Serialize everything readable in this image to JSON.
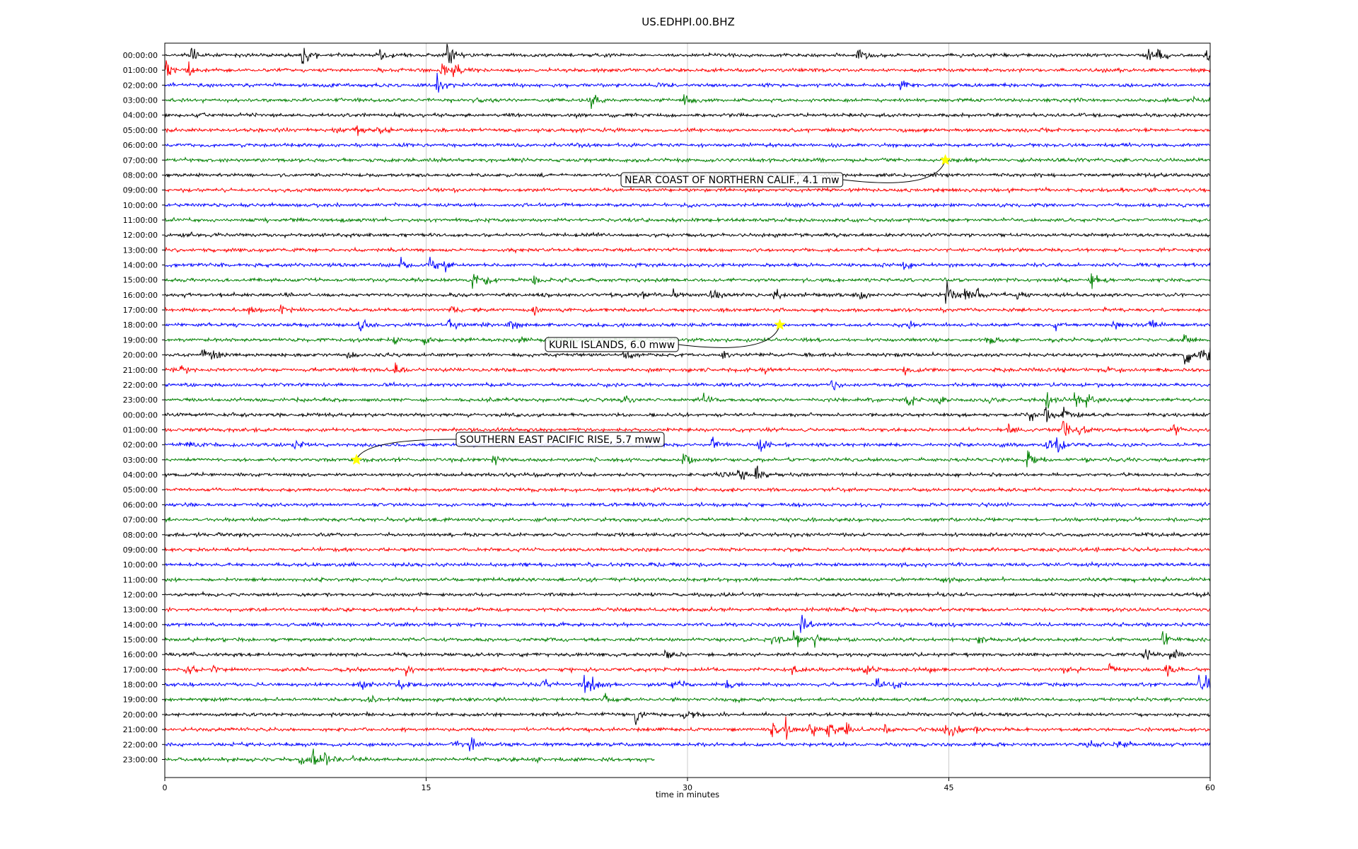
{
  "chart_data": {
    "type": "line",
    "title": "US.EDHPI.00.BHZ",
    "xlabel": "time in minutes",
    "ylabel": "",
    "xlim": [
      0,
      60
    ],
    "xticks": [
      "0",
      "15",
      "30",
      "45",
      "60"
    ],
    "xtick_values": [
      0,
      15,
      30,
      45,
      60
    ],
    "grid": "vertical at 15, 30, 45",
    "color_cycle": [
      "#000000",
      "#ff0000",
      "#0000ff",
      "#008000"
    ],
    "rows": [
      {
        "label": "00:00:00",
        "events": [
          [
            1.6,
            1.2
          ],
          [
            7.9,
            2.0
          ],
          [
            12.4,
            0.9
          ],
          [
            16.3,
            1.5
          ],
          [
            39.8,
            1.3
          ],
          [
            56.5,
            1.2
          ],
          [
            57.0,
            1.6
          ],
          [
            59.9,
            1.1
          ]
        ]
      },
      {
        "label": "01:00:00",
        "events": [
          [
            0.1,
            1.3
          ],
          [
            1.3,
            1.2
          ],
          [
            15.9,
            1.6
          ],
          [
            16.6,
            1.4
          ]
        ]
      },
      {
        "label": "02:00:00",
        "events": [
          [
            15.7,
            1.5
          ],
          [
            42.3,
            1.0
          ]
        ]
      },
      {
        "label": "03:00:00",
        "events": [
          [
            24.5,
            1.1
          ],
          [
            29.9,
            0.8
          ],
          [
            59.0,
            0.6
          ]
        ]
      },
      {
        "label": "04:00:00",
        "events": []
      },
      {
        "label": "05:00:00",
        "events": [
          [
            9.6,
            0.6
          ],
          [
            11.0,
            1.3
          ],
          [
            12.1,
            1.0
          ]
        ]
      },
      {
        "label": "06:00:00",
        "events": []
      },
      {
        "label": "07:00:00",
        "events": []
      },
      {
        "label": "08:00:00",
        "events": []
      },
      {
        "label": "09:00:00",
        "events": []
      },
      {
        "label": "10:00:00",
        "events": []
      },
      {
        "label": "11:00:00",
        "events": []
      },
      {
        "label": "12:00:00",
        "events": []
      },
      {
        "label": "13:00:00",
        "events": []
      },
      {
        "label": "14:00:00",
        "events": [
          [
            13.5,
            0.9
          ],
          [
            15.3,
            1.2
          ],
          [
            16.1,
            0.9
          ],
          [
            42.5,
            0.8
          ]
        ]
      },
      {
        "label": "15:00:00",
        "events": [
          [
            17.7,
            1.0
          ],
          [
            18.5,
            0.9
          ],
          [
            21.2,
            0.8
          ],
          [
            53.2,
            1.4
          ]
        ]
      },
      {
        "label": "16:00:00",
        "events": [
          [
            21.3,
            0.7
          ],
          [
            29.3,
            1.0
          ],
          [
            31.4,
            0.8
          ],
          [
            40.0,
            0.9
          ],
          [
            44.9,
            1.8
          ],
          [
            46.0,
            1.0
          ],
          [
            46.7,
            0.8
          ],
          [
            27.5,
            0.7
          ],
          [
            35.0,
            0.7
          ],
          [
            49.0,
            0.6
          ]
        ]
      },
      {
        "label": "17:00:00",
        "events": [
          [
            4.9,
            0.8
          ],
          [
            6.7,
            0.9
          ],
          [
            16.4,
            0.7
          ],
          [
            21.2,
            0.8
          ]
        ]
      },
      {
        "label": "18:00:00",
        "events": [
          [
            11.2,
            0.9
          ],
          [
            16.3,
            0.8
          ],
          [
            19.8,
            0.8
          ],
          [
            42.8,
            0.9
          ],
          [
            51.1,
            0.7
          ],
          [
            54.5,
            0.8
          ],
          [
            56.6,
            0.9
          ]
        ]
      },
      {
        "label": "19:00:00",
        "events": [
          [
            13.2,
            0.7
          ],
          [
            14.9,
            0.8
          ],
          [
            20.3,
            0.6
          ],
          [
            47.2,
            0.7
          ],
          [
            58.6,
            0.8
          ]
        ]
      },
      {
        "label": "20:00:00",
        "events": [
          [
            2.2,
            1.2
          ],
          [
            2.6,
            1.0
          ],
          [
            10.5,
            0.8
          ],
          [
            26.4,
            0.7
          ],
          [
            32.1,
            1.0
          ],
          [
            58.6,
            1.2
          ],
          [
            59.5,
            1.0
          ],
          [
            59.9,
            1.0
          ]
        ]
      },
      {
        "label": "21:00:00",
        "events": [
          [
            0.5,
            1.0
          ],
          [
            1.0,
            1.0
          ],
          [
            13.3,
            1.1
          ],
          [
            34.4,
            0.6
          ],
          [
            42.5,
            0.7
          ],
          [
            54.1,
            0.6
          ]
        ]
      },
      {
        "label": "22:00:00",
        "events": [
          [
            38.3,
            0.6
          ]
        ]
      },
      {
        "label": "23:00:00",
        "events": [
          [
            26.3,
            1.1
          ],
          [
            31.0,
            0.9
          ],
          [
            42.6,
            1.2
          ],
          [
            44.5,
            0.7
          ],
          [
            47.2,
            0.9
          ],
          [
            50.7,
            1.4
          ],
          [
            52.3,
            1.2
          ],
          [
            52.9,
            0.9
          ]
        ]
      },
      {
        "label": "00:00:00",
        "events": [
          [
            49.7,
            0.9
          ],
          [
            50.6,
            1.8
          ],
          [
            51.6,
            1.2
          ]
        ]
      },
      {
        "label": "01:00:00",
        "events": [
          [
            48.5,
            0.6
          ],
          [
            51.6,
            1.8
          ],
          [
            52.6,
            0.8
          ],
          [
            58.0,
            0.8
          ]
        ]
      },
      {
        "label": "02:00:00",
        "events": [
          [
            1.3,
            0.8
          ],
          [
            7.4,
            0.8
          ],
          [
            31.5,
            1.1
          ],
          [
            34.1,
            1.6
          ],
          [
            50.7,
            1.0
          ],
          [
            51.3,
            0.9
          ]
        ]
      },
      {
        "label": "03:00:00",
        "events": [
          [
            18.9,
            1.1
          ],
          [
            29.8,
            0.9
          ],
          [
            49.6,
            1.4
          ]
        ]
      },
      {
        "label": "04:00:00",
        "events": [
          [
            31.7,
            1.0
          ],
          [
            33.0,
            0.9
          ],
          [
            34.0,
            0.9
          ]
        ]
      },
      {
        "label": "05:00:00",
        "events": []
      },
      {
        "label": "06:00:00",
        "events": []
      },
      {
        "label": "07:00:00",
        "events": []
      },
      {
        "label": "08:00:00",
        "events": []
      },
      {
        "label": "09:00:00",
        "events": []
      },
      {
        "label": "10:00:00",
        "events": []
      },
      {
        "label": "11:00:00",
        "events": [
          [
            44.7,
            0.5
          ]
        ]
      },
      {
        "label": "12:00:00",
        "events": []
      },
      {
        "label": "13:00:00",
        "events": []
      },
      {
        "label": "14:00:00",
        "events": [
          [
            36.6,
            1.3
          ]
        ]
      },
      {
        "label": "15:00:00",
        "events": [
          [
            34.9,
            1.0
          ],
          [
            36.2,
            1.3
          ],
          [
            37.4,
            0.8
          ],
          [
            46.8,
            0.7
          ],
          [
            57.3,
            1.3
          ]
        ]
      },
      {
        "label": "16:00:00",
        "events": [
          [
            28.8,
            0.7
          ],
          [
            56.2,
            1.0
          ],
          [
            57.8,
            0.8
          ]
        ]
      },
      {
        "label": "17:00:00",
        "events": [
          [
            1.3,
            1.0
          ],
          [
            2.7,
            1.0
          ],
          [
            13.9,
            1.2
          ],
          [
            36.1,
            1.2
          ],
          [
            40.2,
            0.9
          ],
          [
            44.0,
            0.6
          ],
          [
            51.6,
            0.8
          ],
          [
            54.3,
            0.8
          ],
          [
            57.5,
            1.9
          ]
        ]
      },
      {
        "label": "18:00:00",
        "events": [
          [
            11.3,
            0.7
          ],
          [
            13.5,
            0.9
          ],
          [
            21.7,
            1.0
          ],
          [
            24.0,
            1.6
          ],
          [
            24.5,
            1.5
          ],
          [
            29.2,
            1.1
          ],
          [
            32.3,
            1.0
          ],
          [
            40.9,
            1.0
          ],
          [
            41.9,
            0.9
          ],
          [
            59.4,
            1.4
          ],
          [
            59.8,
            1.0
          ]
        ]
      },
      {
        "label": "19:00:00",
        "events": [
          [
            11.8,
            0.5
          ],
          [
            25.3,
            0.5
          ]
        ]
      },
      {
        "label": "20:00:00",
        "events": [
          [
            27.1,
            1.5
          ],
          [
            29.6,
            0.9
          ],
          [
            30.3,
            0.6
          ]
        ]
      },
      {
        "label": "21:00:00",
        "events": [
          [
            34.9,
            1.0
          ],
          [
            35.7,
            1.9
          ],
          [
            37.1,
            1.2
          ],
          [
            38.1,
            1.6
          ],
          [
            39.1,
            1.1
          ],
          [
            41.4,
            0.9
          ],
          [
            44.8,
            1.1
          ],
          [
            45.3,
            1.1
          ],
          [
            46.6,
            1.0
          ]
        ]
      },
      {
        "label": "22:00:00",
        "events": [
          [
            16.5,
            0.8
          ],
          [
            17.6,
            1.0
          ],
          [
            53.0,
            0.9
          ],
          [
            54.8,
            0.5
          ]
        ]
      },
      {
        "label": "23:00:00",
        "end_minute": 28.1,
        "events": [
          [
            7.8,
            1.1
          ],
          [
            8.5,
            1.3
          ],
          [
            9.2,
            1.4
          ],
          [
            10.9,
            0.7
          ],
          [
            21.4,
            0.5
          ]
        ]
      }
    ],
    "annotations": [
      {
        "text": "NEAR COAST OF NORTHERN CALIF., 4.1 mw",
        "row": 7,
        "minute": 44.8
      },
      {
        "text": "KURIL ISLANDS, 6.0 mww",
        "row": 18,
        "minute": 35.3
      },
      {
        "text": "SOUTHERN EAST PACIFIC RISE, 5.7 mww",
        "row": 27,
        "minute": 11.0
      }
    ]
  }
}
